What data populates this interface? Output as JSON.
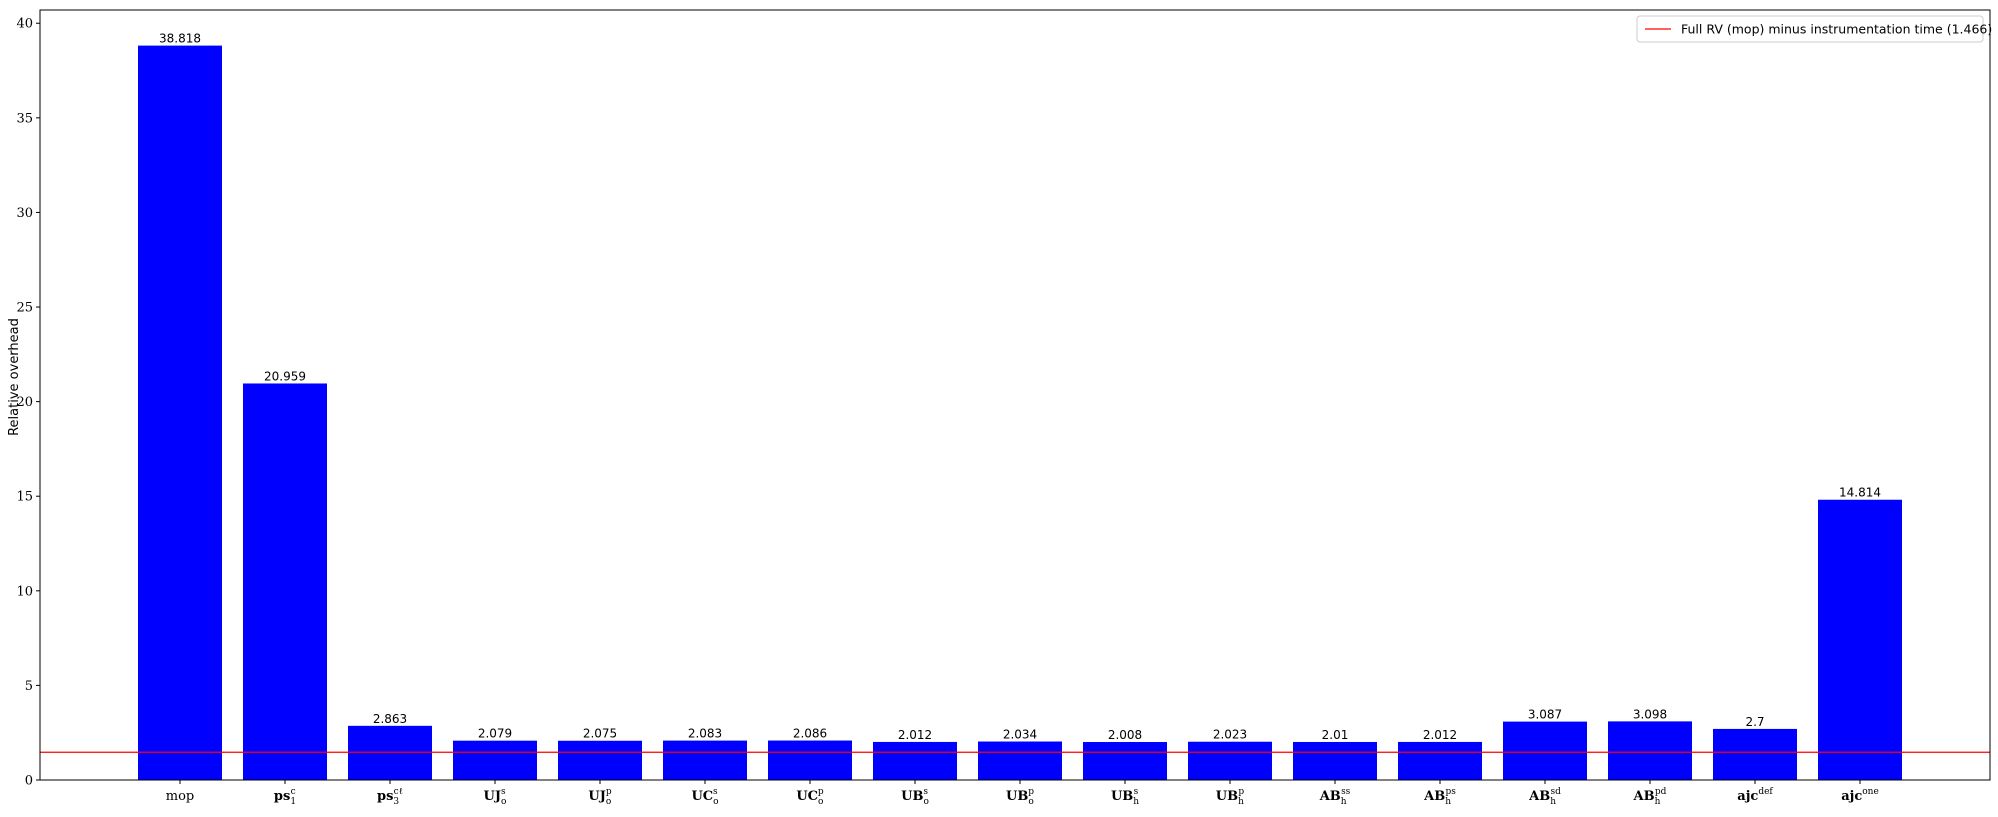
{
  "chart_data": {
    "type": "bar",
    "title": "",
    "xlabel": "",
    "ylabel": "Relative overhead",
    "ylim": [
      0,
      40.7
    ],
    "yticks": [
      0,
      5,
      10,
      15,
      20,
      25,
      30,
      35,
      40
    ],
    "grid": false,
    "bar_color": "#0000ff",
    "categories": [
      {
        "base": "mop",
        "sub": "",
        "sup": "",
        "bold": false
      },
      {
        "base": "ps",
        "sub": "1",
        "sup": "c",
        "bold": true
      },
      {
        "base": "ps",
        "sub": "3",
        "sup": "cℓ",
        "bold": true
      },
      {
        "base": "UJ",
        "sub": "o",
        "sup": "s",
        "bold": true
      },
      {
        "base": "UJ",
        "sub": "o",
        "sup": "p",
        "bold": true
      },
      {
        "base": "UC",
        "sub": "o",
        "sup": "s",
        "bold": true
      },
      {
        "base": "UC",
        "sub": "o",
        "sup": "p",
        "bold": true
      },
      {
        "base": "UB",
        "sub": "o",
        "sup": "s",
        "bold": true
      },
      {
        "base": "UB",
        "sub": "o",
        "sup": "p",
        "bold": true
      },
      {
        "base": "UB",
        "sub": "h",
        "sup": "s",
        "bold": true
      },
      {
        "base": "UB",
        "sub": "h",
        "sup": "p",
        "bold": true
      },
      {
        "base": "AB",
        "sub": "h",
        "sup": "ss",
        "bold": true
      },
      {
        "base": "AB",
        "sub": "h",
        "sup": "ps",
        "bold": true
      },
      {
        "base": "AB",
        "sub": "h",
        "sup": "sd",
        "bold": true
      },
      {
        "base": "AB",
        "sub": "h",
        "sup": "pd",
        "bold": true
      },
      {
        "base": "ajc",
        "sub": "",
        "sup": "def",
        "bold": true
      },
      {
        "base": "ajc",
        "sub": "",
        "sup": "one",
        "bold": true
      }
    ],
    "values": [
      38.818,
      20.959,
      2.863,
      2.079,
      2.075,
      2.083,
      2.086,
      2.012,
      2.034,
      2.008,
      2.023,
      2.01,
      2.012,
      3.087,
      3.098,
      2.7,
      14.814
    ],
    "labels": [
      "38.818",
      "20.959",
      "2.863",
      "2.079",
      "2.075",
      "2.083",
      "2.086",
      "2.012",
      "2.034",
      "2.008",
      "2.023",
      "2.01",
      "2.012",
      "3.087",
      "3.098",
      "2.7",
      "14.814"
    ],
    "reference_line": {
      "value": 1.466,
      "color": "#ff0000",
      "label": "Full RV (mop) minus instrumentation time (1.466)"
    },
    "legend_position": "top-right"
  }
}
